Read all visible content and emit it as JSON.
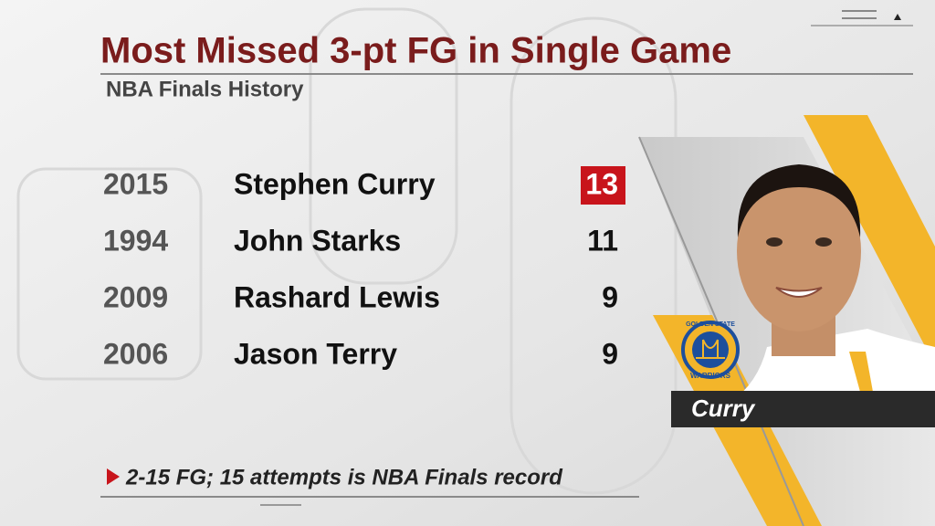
{
  "header": {
    "title": "Most Missed 3-pt FG in Single Game",
    "subtitle": "NBA Finals History"
  },
  "table": {
    "rows": [
      [
        "2015",
        "Stephen Curry",
        "13"
      ],
      [
        "1994",
        "John Starks",
        "11"
      ],
      [
        "2009",
        "Rashard Lewis",
        "9"
      ],
      [
        "2006",
        "Jason Terry",
        "9"
      ]
    ]
  },
  "player_card": {
    "name": "Curry",
    "logo_top": "GOLDEN STATE",
    "logo_bottom": "WARRIORS"
  },
  "footnote": "2-15 FG; 15 attempts is NBA Finals record"
}
